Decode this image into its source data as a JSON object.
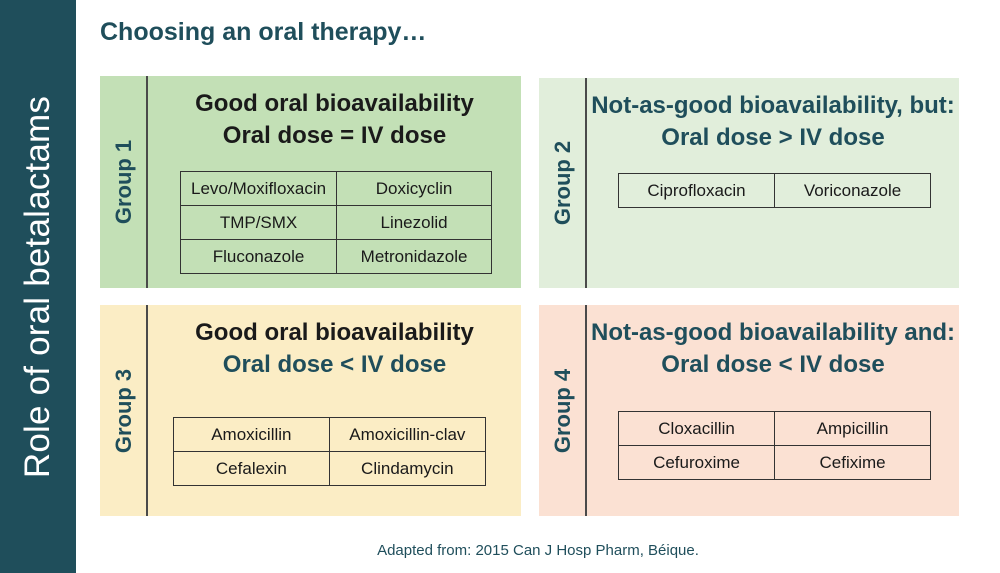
{
  "sidebar": {
    "title": "Role of oral betalactams"
  },
  "page": {
    "title": "Choosing an oral therapy…"
  },
  "groups": [
    {
      "label": "Group 1",
      "heading_line1": "Good oral bioavailability",
      "heading_line2": "Oral dose = IV dose",
      "drugs": [
        [
          "Levo/Moxifloxacin",
          "Doxicyclin"
        ],
        [
          "TMP/SMX",
          "Linezolid"
        ],
        [
          "Fluconazole",
          "Metronidazole"
        ]
      ]
    },
    {
      "label": "Group 2",
      "heading_line1": "Not-as-good bioavailability, but:",
      "heading_line2": "Oral dose > IV dose",
      "drugs": [
        [
          "Ciprofloxacin",
          "Voriconazole"
        ]
      ]
    },
    {
      "label": "Group 3",
      "heading_line1": "Good oral bioavailability",
      "heading_line2": "Oral dose < IV dose",
      "drugs": [
        [
          "Amoxicillin",
          "Amoxicillin-clav"
        ],
        [
          "Cefalexin",
          "Clindamycin"
        ]
      ]
    },
    {
      "label": "Group 4",
      "heading_line1": "Not-as-good bioavailability and:",
      "heading_line2": "Oral dose < IV dose",
      "drugs": [
        [
          "Cloxacillin",
          "Ampicillin"
        ],
        [
          "Cefuroxime",
          "Cefixime"
        ]
      ]
    }
  ],
  "footer": {
    "source": "Adapted from: 2015 Can J Hosp Pharm, Béique."
  }
}
